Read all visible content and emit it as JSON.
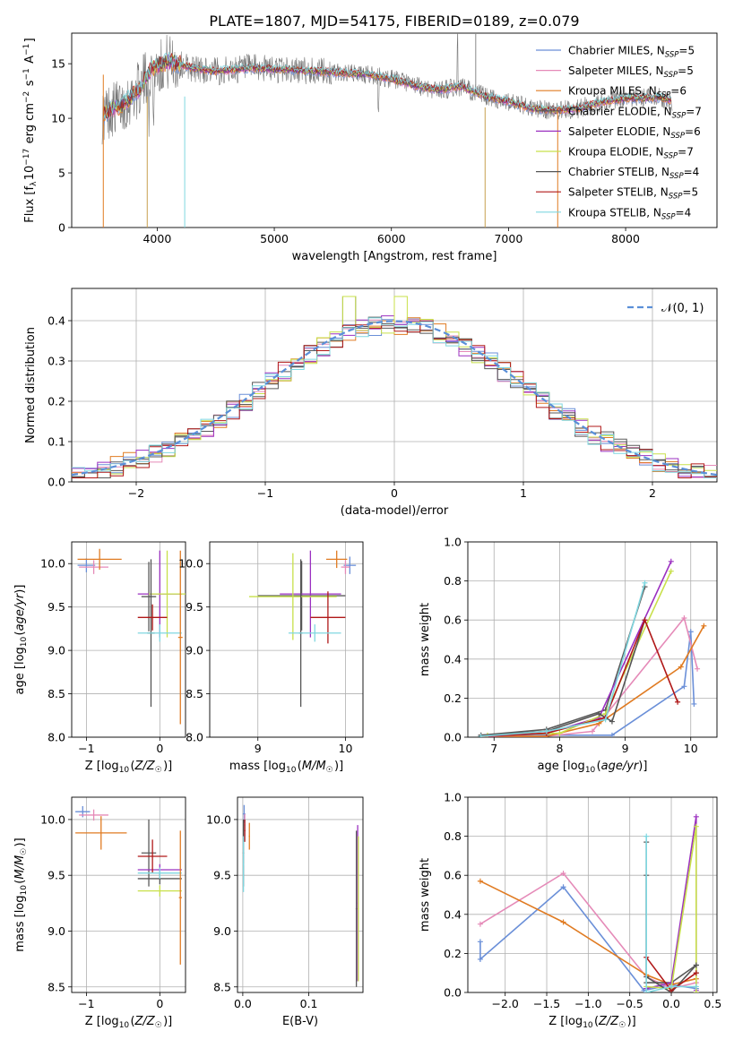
{
  "figure": {
    "title": "PLATE=1807, MJD=54175, FIBERID=0189, z=0.079"
  },
  "colors": [
    "#6a8fd8",
    "#e58ab8",
    "#e07b22",
    "#5a5a5a",
    "#9b30c0",
    "#c8e04a",
    "#555555",
    "#b01818",
    "#7fd7e0"
  ],
  "chart_data": [
    {
      "id": "spectrum",
      "type": "line",
      "xlabel": "wavelength [Angstrom, rest frame]",
      "ylabel": "Flux [f_λ 10^-17 erg cm^-2 s^-1 A^-1]",
      "xlim": [
        3270,
        8780
      ],
      "ylim": [
        0,
        17.8
      ],
      "xticks": [
        4000,
        5000,
        6000,
        7000,
        8000
      ],
      "yticks": [
        0,
        5,
        10,
        15
      ],
      "grid": false,
      "legend_position": "top-right",
      "legend": [
        {
          "model": "Chabrier MILES",
          "n": "5"
        },
        {
          "model": "Salpeter MILES",
          "n": "5"
        },
        {
          "model": "Kroupa MILES",
          "n": "6"
        },
        {
          "model": "Chabrier ELODIE",
          "n": "7"
        },
        {
          "model": "Salpeter ELODIE",
          "n": "6"
        },
        {
          "model": "Kroupa ELODIE",
          "n": "7"
        },
        {
          "model": "Chabrier STELIB",
          "n": "4"
        },
        {
          "model": "Salpeter STELIB",
          "n": "5"
        },
        {
          "model": "Kroupa STELIB",
          "n": "4"
        }
      ],
      "continuum": [
        [
          3530,
          10.2
        ],
        [
          3600,
          10.8
        ],
        [
          3700,
          11.2
        ],
        [
          3850,
          12.7
        ],
        [
          3950,
          14.6
        ],
        [
          4100,
          15.2
        ],
        [
          4300,
          14.6
        ],
        [
          4500,
          14.3
        ],
        [
          4800,
          14.6
        ],
        [
          5000,
          14.5
        ],
        [
          5200,
          14.4
        ],
        [
          5500,
          14.2
        ],
        [
          5800,
          14.0
        ],
        [
          6000,
          13.6
        ],
        [
          6200,
          13.0
        ],
        [
          6400,
          12.6
        ],
        [
          6600,
          12.9
        ],
        [
          6800,
          12.0
        ],
        [
          7000,
          11.5
        ],
        [
          7200,
          10.9
        ],
        [
          7400,
          10.7
        ],
        [
          7600,
          10.9
        ],
        [
          7800,
          11.5
        ],
        [
          8000,
          11.8
        ],
        [
          8300,
          11.9
        ],
        [
          8400,
          11.5
        ]
      ]
    },
    {
      "id": "residuals",
      "type": "histogram",
      "xlabel": "(data-model)/error",
      "ylabel": "Normed distribution",
      "xlim": [
        -2.5,
        2.5
      ],
      "ylim": [
        0,
        0.48
      ],
      "xticks": [
        -2,
        -1,
        0,
        1,
        2
      ],
      "yticks": [
        0.0,
        0.1,
        0.2,
        0.3,
        0.4
      ],
      "grid": true,
      "legend_position": "top-right",
      "reference_label": "𝒩(0, 1)",
      "reference_color": "#5a8fd8",
      "bin_width": 0.1
    },
    {
      "id": "age-vs-Z",
      "type": "errorbar",
      "xlabel": "Z [log10(Z/Z☉)]",
      "ylabel": "age  [log10(age/yr)]",
      "xlim": [
        -1.2,
        0.35
      ],
      "ylim": [
        8.0,
        10.25
      ],
      "xticks": [
        -1,
        0
      ],
      "yticks": [
        8.0,
        8.5,
        9.0,
        9.5,
        10.0
      ],
      "grid": true,
      "points": [
        {
          "x": -1.0,
          "y": 9.98,
          "xerr": 0.12,
          "yerr": 0.08,
          "c": 0
        },
        {
          "x": -0.9,
          "y": 9.96,
          "xerr": 0.2,
          "yerr": 0.08,
          "c": 1
        },
        {
          "x": -0.82,
          "y": 10.05,
          "xerr": 0.3,
          "yerr": 0.12,
          "c": 2
        },
        {
          "x": -0.15,
          "y": 9.62,
          "xerr": 0.1,
          "yerr": 0.4,
          "c": 3
        },
        {
          "x": 0.0,
          "y": 9.65,
          "xerr": 0.3,
          "yerr": 0.5,
          "c": 4
        },
        {
          "x": 0.1,
          "y": 9.65,
          "xerr": 0.25,
          "yerr": 0.5,
          "c": 5
        },
        {
          "x": -0.12,
          "y": 9.2,
          "xerr": 0.05,
          "yerr": 0.85,
          "c": 6
        },
        {
          "x": -0.1,
          "y": 9.38,
          "xerr": 0.2,
          "yerr": 0.15,
          "c": 7
        },
        {
          "x": 0.0,
          "y": 9.2,
          "xerr": 0.3,
          "yerr": 0.1,
          "c": 8
        },
        {
          "x": 0.28,
          "y": 9.15,
          "xerr": 0.03,
          "yerr": 1.0,
          "c": 2
        }
      ]
    },
    {
      "id": "age-vs-mass",
      "type": "errorbar",
      "xlabel": "mass [log10(M/M☉)]",
      "ylabel": "",
      "xlim": [
        8.45,
        10.2
      ],
      "ylim": [
        8.0,
        10.25
      ],
      "xticks": [
        9,
        10
      ],
      "yticks": [
        8.0,
        8.5,
        9.0,
        9.5,
        10.0
      ],
      "grid": true,
      "points": [
        {
          "x": 10.05,
          "y": 9.98,
          "xerr": 0.07,
          "yerr": 0.1,
          "c": 0
        },
        {
          "x": 10.0,
          "y": 9.96,
          "xerr": 0.05,
          "yerr": 0.08,
          "c": 1
        },
        {
          "x": 9.9,
          "y": 10.05,
          "xerr": 0.12,
          "yerr": 0.1,
          "c": 2
        },
        {
          "x": 9.5,
          "y": 9.63,
          "xerr": 0.5,
          "yerr": 0.4,
          "c": 3
        },
        {
          "x": 9.6,
          "y": 9.65,
          "xerr": 0.35,
          "yerr": 0.5,
          "c": 4
        },
        {
          "x": 9.4,
          "y": 9.62,
          "xerr": 0.5,
          "yerr": 0.5,
          "c": 5
        },
        {
          "x": 9.49,
          "y": 9.2,
          "xerr": 0.02,
          "yerr": 0.85,
          "c": 6
        },
        {
          "x": 9.8,
          "y": 9.38,
          "xerr": 0.2,
          "yerr": 0.3,
          "c": 7
        },
        {
          "x": 9.65,
          "y": 9.2,
          "xerr": 0.3,
          "yerr": 0.1,
          "c": 8
        }
      ]
    },
    {
      "id": "weight-vs-age",
      "type": "line",
      "xlabel": "age  [log10(age/yr)]",
      "ylabel": "mass weight",
      "xlim": [
        6.6,
        10.4
      ],
      "ylim": [
        0.0,
        1.0
      ],
      "xticks": [
        7,
        8,
        9,
        10
      ],
      "yticks": [
        0.0,
        0.2,
        0.4,
        0.6,
        0.8,
        1.0
      ],
      "grid": true,
      "series": [
        {
          "c": 0,
          "points": [
            [
              6.8,
              0.005
            ],
            [
              7.8,
              0.01
            ],
            [
              8.8,
              0.01
            ],
            [
              9.9,
              0.26
            ],
            [
              10.0,
              0.54
            ],
            [
              10.05,
              0.17
            ]
          ]
        },
        {
          "c": 1,
          "points": [
            [
              6.8,
              0.005
            ],
            [
              7.8,
              0.005
            ],
            [
              8.5,
              0.03
            ],
            [
              9.9,
              0.61
            ],
            [
              10.1,
              0.35
            ]
          ]
        },
        {
          "c": 2,
          "points": [
            [
              6.8,
              0.005
            ],
            [
              7.8,
              0.005
            ],
            [
              8.6,
              0.07
            ],
            [
              9.85,
              0.36
            ],
            [
              10.2,
              0.57
            ]
          ]
        },
        {
          "c": 3,
          "points": [
            [
              6.8,
              0.01
            ],
            [
              7.8,
              0.04
            ],
            [
              8.7,
              0.14
            ],
            [
              9.3,
              0.77
            ]
          ]
        },
        {
          "c": 4,
          "points": [
            [
              6.9,
              0.005
            ],
            [
              7.8,
              0.02
            ],
            [
              8.6,
              0.1
            ],
            [
              9.7,
              0.9
            ]
          ]
        },
        {
          "c": 5,
          "points": [
            [
              6.9,
              0.01
            ],
            [
              8.0,
              0.02
            ],
            [
              8.7,
              0.12
            ],
            [
              9.7,
              0.85
            ]
          ]
        },
        {
          "c": 6,
          "points": [
            [
              6.8,
              0.01
            ],
            [
              7.8,
              0.03
            ],
            [
              8.6,
              0.12
            ],
            [
              8.8,
              0.08
            ],
            [
              9.3,
              0.6
            ]
          ]
        },
        {
          "c": 7,
          "points": [
            [
              6.8,
              0.005
            ],
            [
              7.8,
              0.02
            ],
            [
              8.7,
              0.1
            ],
            [
              9.3,
              0.6
            ],
            [
              9.8,
              0.18
            ]
          ]
        },
        {
          "c": 8,
          "points": [
            [
              6.8,
              0.005
            ],
            [
              7.8,
              0.03
            ],
            [
              8.7,
              0.09
            ],
            [
              9.3,
              0.79
            ]
          ]
        }
      ]
    },
    {
      "id": "mass-vs-Z",
      "type": "errorbar",
      "xlabel": "Z [log10(Z/Z☉)]",
      "ylabel": "mass [log10(M/M☉)]",
      "xlim": [
        -1.2,
        0.35
      ],
      "ylim": [
        8.45,
        10.2
      ],
      "xticks": [
        -1,
        0
      ],
      "yticks": [
        8.5,
        9.0,
        9.5,
        10.0
      ],
      "grid": true,
      "points": [
        {
          "x": -1.05,
          "y": 10.07,
          "xerr": 0.1,
          "yerr": 0.05,
          "c": 0
        },
        {
          "x": -0.9,
          "y": 10.04,
          "xerr": 0.2,
          "yerr": 0.05,
          "c": 1
        },
        {
          "x": -0.8,
          "y": 9.88,
          "xerr": 0.35,
          "yerr": 0.15,
          "c": 2
        },
        {
          "x": -0.15,
          "y": 9.7,
          "xerr": 0.1,
          "yerr": 0.3,
          "c": 3
        },
        {
          "x": 0.0,
          "y": 9.55,
          "xerr": 0.3,
          "yerr": 0.05,
          "c": 4
        },
        {
          "x": 0.0,
          "y": 9.36,
          "xerr": 0.3,
          "yerr": 0.05,
          "c": 5
        },
        {
          "x": 0.0,
          "y": 9.47,
          "xerr": 0.3,
          "yerr": 0.05,
          "c": 6
        },
        {
          "x": -0.1,
          "y": 9.67,
          "xerr": 0.2,
          "yerr": 0.15,
          "c": 7
        },
        {
          "x": 0.0,
          "y": 9.52,
          "xerr": 0.3,
          "yerr": 0.05,
          "c": 8
        },
        {
          "x": 0.28,
          "y": 9.3,
          "xerr": 0.02,
          "yerr": 0.6,
          "c": 2
        }
      ]
    },
    {
      "id": "mass-vs-ebv",
      "type": "errorbar",
      "xlabel": "E(B-V)",
      "ylabel": "",
      "xlim": [
        -0.008,
        0.182
      ],
      "ylim": [
        8.45,
        10.2
      ],
      "xticks": [
        0.0,
        0.1
      ],
      "yticks": [
        8.5,
        9.0,
        9.5,
        10.0
      ],
      "grid": true,
      "points": [
        {
          "x": 0.002,
          "y": 10.05,
          "xerr": 0.002,
          "yerr": 0.08,
          "c": 0
        },
        {
          "x": 0.003,
          "y": 9.95,
          "xerr": 0.001,
          "yerr": 0.1,
          "c": 1
        },
        {
          "x": 0.01,
          "y": 9.85,
          "xerr": 0.001,
          "yerr": 0.12,
          "c": 2
        },
        {
          "x": 0.172,
          "y": 9.2,
          "xerr": 0.001,
          "yerr": 0.7,
          "c": 3
        },
        {
          "x": 0.174,
          "y": 9.25,
          "xerr": 0.001,
          "yerr": 0.7,
          "c": 4
        },
        {
          "x": 0.175,
          "y": 9.2,
          "xerr": 0.001,
          "yerr": 0.65,
          "c": 5
        },
        {
          "x": 0.001,
          "y": 9.7,
          "xerr": 0.001,
          "yerr": 0.3,
          "c": 6
        },
        {
          "x": 0.003,
          "y": 9.9,
          "xerr": 0.001,
          "yerr": 0.1,
          "c": 7
        },
        {
          "x": 0.001,
          "y": 9.6,
          "xerr": 0.001,
          "yerr": 0.25,
          "c": 8
        }
      ]
    },
    {
      "id": "weight-vs-Z",
      "type": "line",
      "xlabel": "Z [log10(Z/Z☉)]",
      "ylabel": "mass weight",
      "xlim": [
        -2.45,
        0.55
      ],
      "ylim": [
        0.0,
        1.0
      ],
      "xticks": [
        -2.0,
        -1.5,
        -1.0,
        -0.5,
        0.0,
        0.5
      ],
      "yticks": [
        0.0,
        0.2,
        0.4,
        0.6,
        0.8,
        1.0
      ],
      "grid": true,
      "series": [
        {
          "c": 0,
          "points": [
            [
              -2.3,
              0.26
            ],
            [
              -2.3,
              0.17
            ],
            [
              -1.3,
              0.54
            ],
            [
              -0.33,
              0.01
            ],
            [
              0.0,
              0.04
            ],
            [
              0.3,
              0.02
            ]
          ]
        },
        {
          "c": 1,
          "points": [
            [
              -2.3,
              0.35
            ],
            [
              -1.3,
              0.61
            ],
            [
              -0.3,
              0.08
            ],
            [
              0.0,
              0.02
            ],
            [
              0.3,
              0.05
            ]
          ]
        },
        {
          "c": 2,
          "points": [
            [
              -2.3,
              0.57
            ],
            [
              -1.3,
              0.36
            ],
            [
              -0.3,
              0.09
            ],
            [
              0.0,
              0.04
            ],
            [
              0.3,
              0.07
            ]
          ]
        },
        {
          "c": 3,
          "points": [
            [
              -0.3,
              0.77
            ],
            [
              -0.3,
              0.05
            ],
            [
              0.0,
              0.05
            ],
            [
              0.3,
              0.14
            ],
            [
              0.3,
              0.1
            ]
          ]
        },
        {
          "c": 4,
          "points": [
            [
              -0.3,
              0.02
            ],
            [
              0.0,
              0.05
            ],
            [
              0.3,
              0.9
            ],
            [
              0.3,
              0.01
            ]
          ]
        },
        {
          "c": 5,
          "points": [
            [
              -0.3,
              0.03
            ],
            [
              0.0,
              0.02
            ],
            [
              0.3,
              0.85
            ],
            [
              0.3,
              0.0
            ]
          ]
        },
        {
          "c": 6,
          "points": [
            [
              -0.3,
              0.6
            ],
            [
              -0.3,
              0.08
            ],
            [
              0.0,
              0.0
            ],
            [
              0.3,
              0.14
            ]
          ]
        },
        {
          "c": 7,
          "points": [
            [
              -0.3,
              0.18
            ],
            [
              0.0,
              0.01
            ],
            [
              0.3,
              0.1
            ]
          ]
        },
        {
          "c": 8,
          "points": [
            [
              -0.3,
              0.8
            ],
            [
              -0.3,
              0.0
            ],
            [
              0.0,
              0.03
            ],
            [
              0.3,
              0.03
            ]
          ]
        }
      ]
    }
  ]
}
